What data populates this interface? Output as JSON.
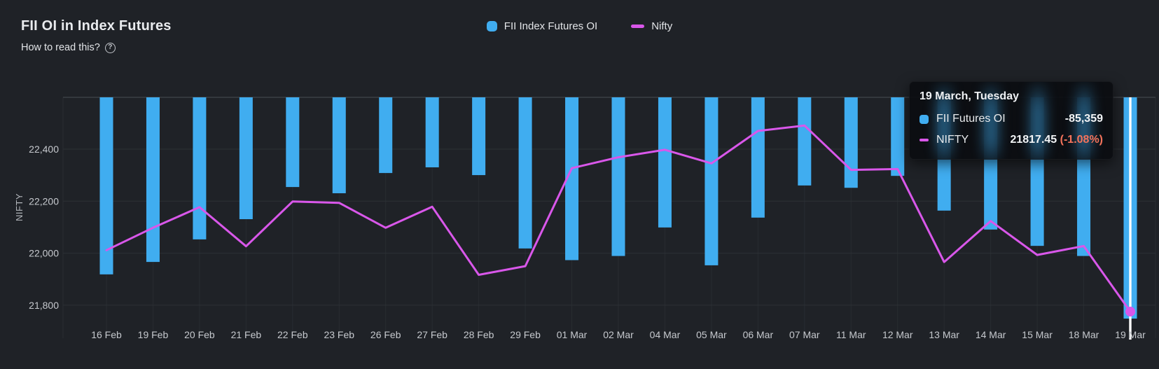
{
  "header": {
    "title": "FII OI in Index Futures",
    "subtitle": "How to read this?",
    "help_glyph": "?"
  },
  "legend": {
    "items": [
      {
        "label": "FII Index Futures OI",
        "marker": "rounded-square",
        "color": "#40adf0"
      },
      {
        "label": "Nifty",
        "marker": "dash",
        "color": "#d957ea"
      }
    ]
  },
  "chart_data": {
    "type": "bar+line (dual axis, bars hang from zero at top)",
    "categories": [
      "16 Feb",
      "19 Feb",
      "20 Feb",
      "21 Feb",
      "22 Feb",
      "23 Feb",
      "26 Feb",
      "27 Feb",
      "28 Feb",
      "29 Feb",
      "01 Mar",
      "02 Mar",
      "04 Mar",
      "05 Mar",
      "06 Mar",
      "07 Mar",
      "11 Mar",
      "12 Mar",
      "13 Mar",
      "14 Mar",
      "15 Mar",
      "18 Mar",
      "19 Mar"
    ],
    "series": [
      {
        "name": "FII Index Futures OI",
        "type": "bar",
        "color": "#40adf0",
        "axis": "right-hidden",
        "values": [
          -68300,
          -63500,
          -54800,
          -47000,
          -34600,
          -37000,
          -29200,
          -27000,
          -30000,
          -58300,
          -62800,
          -61200,
          -50200,
          -64800,
          -46400,
          -34000,
          -34900,
          -30300,
          -43700,
          -51000,
          -57300,
          -61200,
          -85359
        ]
      },
      {
        "name": "Nifty",
        "type": "line",
        "color": "#d957ea",
        "axis": "left",
        "values": [
          22040.7,
          22122.25,
          22196.95,
          22055.05,
          22217.45,
          22212.7,
          22122.05,
          22198.35,
          21951.15,
          21982.8,
          22338.75,
          22378.4,
          22405.6,
          22356.3,
          22474.05,
          22493.55,
          22332.65,
          22335.7,
          21997.7,
          22146.65,
          22023.35,
          22055.7,
          21817.45
        ]
      }
    ],
    "y_axis": {
      "title": "NIFTY",
      "tick_labels": [
        "22,400",
        "22,200",
        "22,000",
        "21,800"
      ],
      "tick_values": [
        22400,
        22200,
        22000,
        21800
      ],
      "top_gridline_value": 22600,
      "grid": true,
      "legend_position": "top-center"
    },
    "highlight": {
      "category": "19 Mar",
      "crosshair": "white-vertical-line",
      "dot_series": "Nifty"
    }
  },
  "tooltip": {
    "date": "19 March, Tuesday",
    "rows": [
      {
        "marker": "rounded-square",
        "color": "#40adf0",
        "label": "FII Futures OI",
        "value": "-85,359"
      },
      {
        "marker": "dash",
        "color": "#d957ea",
        "label": "NIFTY",
        "value": "21817.45",
        "change": "(-1.08%)"
      }
    ]
  },
  "colors": {
    "background": "#1f2227",
    "bar": "#40adf0",
    "line": "#d957ea",
    "crosshair": "#ffffff",
    "axis_text": "#c6c9ce",
    "gridline": "#2d3136",
    "top_gridline": "#3b3f45",
    "tooltip_change": "#f4735b"
  }
}
